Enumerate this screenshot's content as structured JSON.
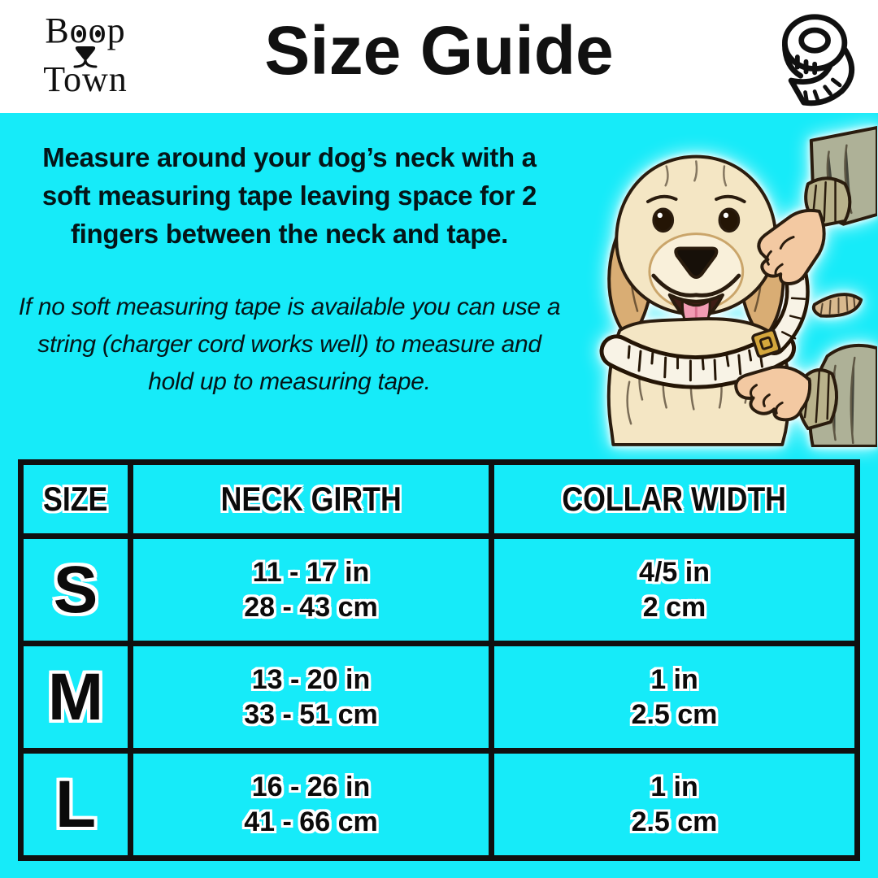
{
  "header": {
    "logo": {
      "line1": "Boop",
      "line2": "Town"
    },
    "title": "Size Guide"
  },
  "instructions": {
    "main_lines": [
      "Measure around your dog’s neck with a",
      "soft measuring tape leaving space for 2",
      "fingers between the neck and tape."
    ],
    "note_lines": [
      "If no soft measuring tape is available you can use a",
      "string (charger cord works well) to measure and",
      "hold up to measuring tape."
    ]
  },
  "illustration": {
    "description": "golden retriever having neck measured with soft tape by two hands"
  },
  "table": {
    "headers": [
      "SIZE",
      "NECK GIRTH",
      "COLLAR WIDTH"
    ],
    "rows": [
      {
        "size": "S",
        "girth_in": "11 - 17 in",
        "girth_cm": "28 - 43 cm",
        "width_in": "4/5 in",
        "width_cm": "2 cm"
      },
      {
        "size": "M",
        "girth_in": "13 - 20 in",
        "girth_cm": "33 - 51 cm",
        "width_in": "1 in",
        "width_cm": "2.5 cm"
      },
      {
        "size": "L",
        "girth_in": "16 - 26 in",
        "girth_cm": "41 - 66 cm",
        "width_in": "1 in",
        "width_cm": "2.5 cm"
      }
    ]
  },
  "colors": {
    "background": "#16ebf9",
    "header_bg": "#ffffff",
    "text": "#000000",
    "table_line": "#101010",
    "fur_cream": "#f4e6c4",
    "fur_tan": "#d9ad74",
    "skin": "#f3c9a2",
    "sleeve": "#aeb197",
    "tape_white": "#f8f3e6",
    "buckle_gold": "#d4a73c"
  }
}
